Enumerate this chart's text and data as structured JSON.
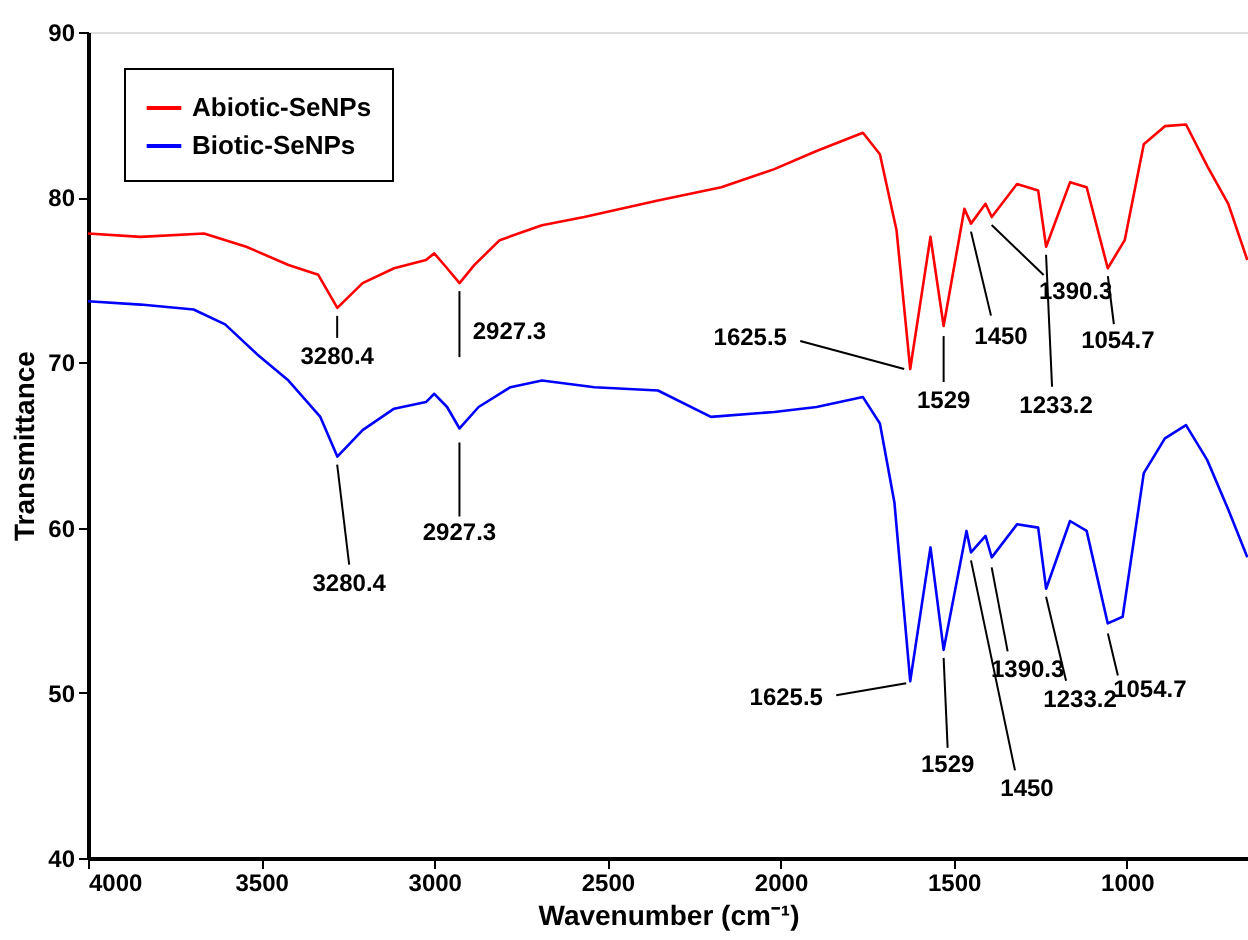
{
  "chart_data": {
    "type": "line",
    "xlabel": "Wavenumber (cm⁻¹)",
    "ylabel": "Transmittance",
    "xlim": [
      4000,
      650
    ],
    "ylim": [
      40,
      90
    ],
    "xticks": [
      4000,
      3500,
      3000,
      2500,
      2000,
      1500,
      1000
    ],
    "yticks": [
      40,
      50,
      60,
      70,
      80,
      90
    ],
    "legend": "top left",
    "line_style": "solid",
    "series": [
      {
        "name": "Abiotic-SeNPs",
        "color": "#ff0000",
        "x": [
          4000,
          3848,
          3665,
          3543,
          3421,
          3335,
          3280,
          3207,
          3116,
          3024,
          3000,
          2963,
          2927,
          2884,
          2811,
          2689,
          2567,
          2354,
          2171,
          2018,
          1896,
          1762,
          1713,
          1665,
          1625.5,
          1567,
          1529,
          1469,
          1450,
          1408,
          1390,
          1317,
          1256,
          1233,
          1164,
          1116,
          1055,
          1006,
          951,
          890,
          829,
          768,
          707,
          652
        ],
        "values": [
          77.8,
          77.6,
          77.8,
          77.0,
          75.9,
          75.3,
          73.3,
          74.8,
          75.7,
          76.2,
          76.6,
          75.7,
          74.8,
          75.9,
          77.4,
          78.3,
          78.8,
          79.8,
          80.6,
          81.7,
          82.8,
          83.9,
          82.6,
          78.0,
          69.6,
          77.6,
          72.2,
          79.3,
          78.4,
          79.6,
          78.8,
          80.8,
          80.4,
          77.0,
          80.9,
          80.6,
          75.7,
          77.4,
          83.2,
          84.3,
          84.4,
          81.9,
          79.6,
          76.2
        ]
      },
      {
        "name": "Biotic-SeNPs",
        "color": "#0000ff",
        "x": [
          4000,
          3848,
          3695,
          3604,
          3512,
          3421,
          3329,
          3280,
          3207,
          3116,
          3024,
          3000,
          2963,
          2927,
          2872,
          2780,
          2689,
          2537,
          2354,
          2201,
          2018,
          1896,
          1762,
          1713,
          1671,
          1625.5,
          1567,
          1529,
          1463,
          1450,
          1408,
          1390,
          1317,
          1256,
          1233,
          1164,
          1116,
          1055,
          1012,
          951,
          890,
          829,
          768,
          707,
          652
        ],
        "values": [
          73.7,
          73.5,
          73.2,
          72.3,
          70.5,
          68.9,
          66.7,
          64.3,
          65.9,
          67.2,
          67.6,
          68.1,
          67.3,
          66.0,
          67.3,
          68.5,
          68.9,
          68.5,
          68.3,
          66.7,
          67.0,
          67.3,
          67.9,
          66.3,
          61.5,
          50.7,
          58.8,
          52.6,
          59.8,
          58.5,
          59.5,
          58.2,
          60.2,
          60.0,
          56.3,
          60.4,
          59.8,
          54.2,
          54.6,
          63.3,
          65.4,
          66.2,
          64.1,
          61.1,
          58.2
        ]
      }
    ],
    "annotations": [
      {
        "text": "3280.4",
        "x": 3280.4,
        "y": 73.3
      },
      {
        "text": "2927.3",
        "x": 2927.3,
        "y": 74.8
      },
      {
        "text": "1625.5",
        "x": 1625.5,
        "y": 69.6
      },
      {
        "text": "1529",
        "x": 1529,
        "y": 72.2
      },
      {
        "text": "1450",
        "x": 1450,
        "y": 78.4
      },
      {
        "text": "1390.3",
        "x": 1390.3,
        "y": 78.8
      },
      {
        "text": "1233.2",
        "x": 1233.2,
        "y": 77.0
      },
      {
        "text": "1054.7",
        "x": 1054.7,
        "y": 75.7
      },
      {
        "text": "3280.4",
        "x": 3280.4,
        "y": 64.3
      },
      {
        "text": "2927.3",
        "x": 2927.3,
        "y": 66.0
      },
      {
        "text": "1625.5",
        "x": 1625.5,
        "y": 50.7
      },
      {
        "text": "1529",
        "x": 1529,
        "y": 52.6
      },
      {
        "text": "1450",
        "x": 1450,
        "y": 58.5
      },
      {
        "text": "1390.3",
        "x": 1390.3,
        "y": 58.2
      },
      {
        "text": "1233.2",
        "x": 1233.2,
        "y": 56.3
      },
      {
        "text": "1054.7",
        "x": 1054.7,
        "y": 54.2
      }
    ]
  }
}
